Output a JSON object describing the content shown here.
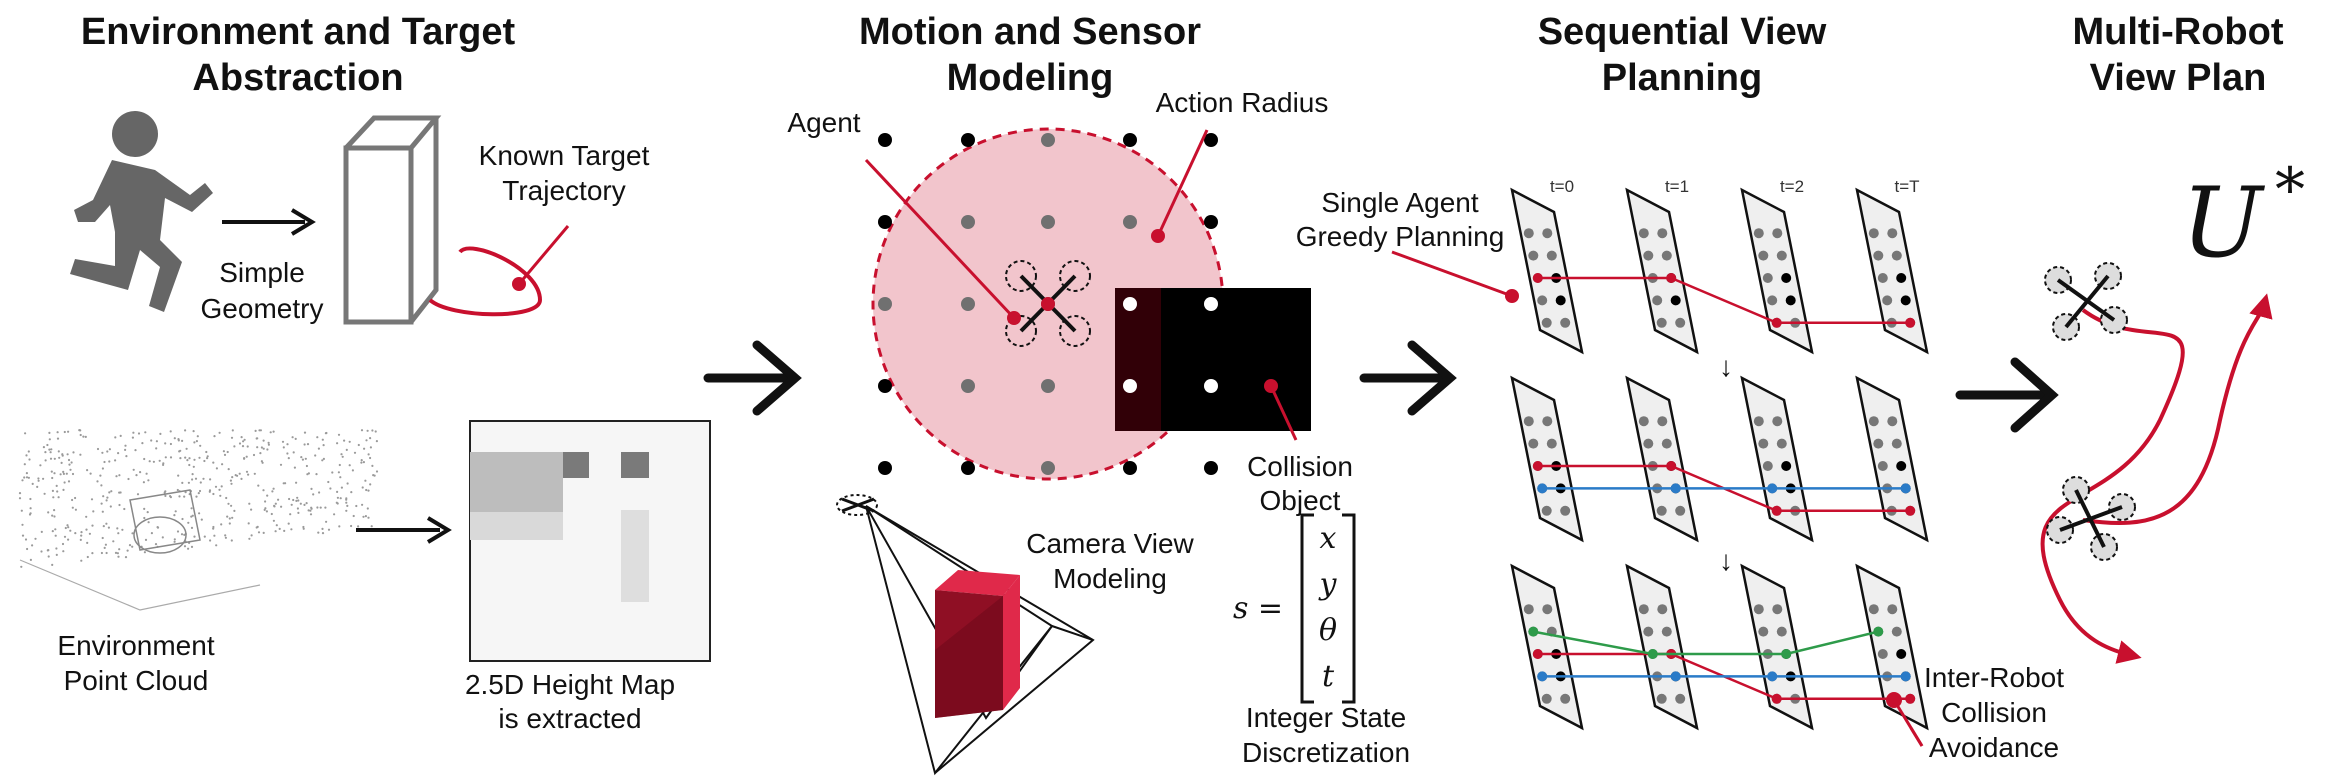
{
  "sections": [
    {
      "title_line1": "Environment and Target",
      "title_line2": "Abstraction"
    },
    {
      "title_line1": "Motion and Sensor",
      "title_line2": "Modeling"
    },
    {
      "title_line1": "Sequential View",
      "title_line2": "Planning"
    },
    {
      "title_line1": "Multi-Robot",
      "title_line2": "View Plan"
    }
  ],
  "abstraction": {
    "simple_geometry": [
      "Simple",
      "Geometry"
    ],
    "known_target": [
      "Known Target",
      "Trajectory"
    ],
    "point_cloud": [
      "Environment",
      "Point Cloud"
    ],
    "height_map": [
      "2.5D Height Map",
      "is extracted"
    ]
  },
  "modeling": {
    "agent": "Agent",
    "action_radius": "Action Radius",
    "collision": [
      "Collision",
      "Object"
    ],
    "camera_view": [
      "Camera View",
      "Modeling"
    ],
    "state_prefix": "s =",
    "state_vector": [
      "x",
      "y",
      "θ",
      "t"
    ],
    "state_caption": [
      "Integer State",
      "Discretization"
    ]
  },
  "planning": {
    "time_labels": [
      "t=0",
      "t=1",
      "t=2",
      "t=T"
    ],
    "single_agent": [
      "Single Agent",
      "Greedy Planning"
    ],
    "inter_robot": [
      "Inter-Robot",
      "Collision",
      "Avoidance"
    ],
    "down_arrow": "↓"
  },
  "result": {
    "symbol": "U",
    "superscript": "*"
  },
  "colors": {
    "crimson": "#c8102e",
    "pink_fill": "#f2c5cc",
    "blue": "#2a7bc8",
    "green": "#2e9b4a",
    "dark_obstacle": "#000000"
  }
}
